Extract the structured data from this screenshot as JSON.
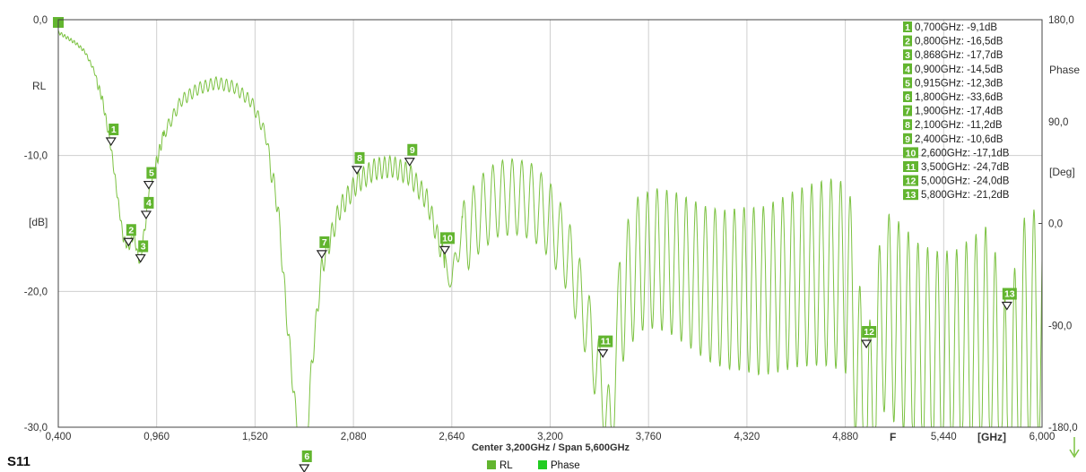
{
  "colors": {
    "trace": "#7cc242",
    "marker_fill": "#62b52f",
    "phase_legend": "#22cc22",
    "grid": "#cfcfcf",
    "axis": "#444444"
  },
  "title": "S11",
  "center_span": "Center 3,200GHz / Span 5,600GHz",
  "x_unit_label": "[GHz]",
  "f_label": "F",
  "rl_label": "RL",
  "left_unit_label": "[dB]",
  "right_unit_label": "[Deg]",
  "phase_label": "Phase",
  "legend": [
    {
      "label": "RL",
      "color": "#62b52f"
    },
    {
      "label": "Phase",
      "color": "#22cc22"
    }
  ],
  "chart_data": {
    "type": "line",
    "title": "S11",
    "xlabel": "[GHz]",
    "ylabel": "[dB]",
    "y2label": "[Deg]",
    "xlim": [
      0.4,
      6.0
    ],
    "ylim": [
      -30,
      0
    ],
    "y2lim": [
      -180,
      180
    ],
    "x_ticks": [
      "0,400",
      "0,960",
      "1,520",
      "2,080",
      "2,640",
      "3,200",
      "3,760",
      "4,320",
      "4,880",
      "5,440",
      "6,000"
    ],
    "x_tick_values": [
      0.4,
      0.96,
      1.52,
      2.08,
      2.64,
      3.2,
      3.76,
      4.32,
      4.88,
      5.44,
      6.0
    ],
    "y_ticks": [
      "0,0",
      "-10,0",
      "-20,0",
      "-30,0"
    ],
    "y_tick_values": [
      0,
      -10,
      -20,
      -30
    ],
    "y2_ticks": [
      "180,0",
      "90,0",
      "0,0",
      "-90,0",
      "-180,0"
    ],
    "y2_tick_values": [
      180,
      90,
      0,
      -90,
      -180
    ],
    "grid": true,
    "series": [
      {
        "name": "RL",
        "shape": [
          [
            0.4,
            -0.8
          ],
          [
            0.45,
            -1.2
          ],
          [
            0.5,
            -1.6
          ],
          [
            0.55,
            -2.2
          ],
          [
            0.6,
            -3.5
          ],
          [
            0.65,
            -5.5
          ],
          [
            0.7,
            -9.1
          ],
          [
            0.74,
            -13.0
          ],
          [
            0.77,
            -15.8
          ],
          [
            0.8,
            -16.5
          ],
          [
            0.83,
            -15.5
          ],
          [
            0.85,
            -16.9
          ],
          [
            0.868,
            -17.7
          ],
          [
            0.88,
            -16.0
          ],
          [
            0.9,
            -14.5
          ],
          [
            0.915,
            -12.3
          ],
          [
            0.95,
            -10.5
          ],
          [
            1.0,
            -8.0
          ],
          [
            1.1,
            -5.5
          ],
          [
            1.2,
            -4.6
          ],
          [
            1.3,
            -4.2
          ],
          [
            1.4,
            -4.5
          ],
          [
            1.5,
            -5.6
          ],
          [
            1.58,
            -8.0
          ],
          [
            1.65,
            -13.0
          ],
          [
            1.7,
            -21.0
          ],
          [
            1.75,
            -28.0
          ],
          [
            1.8,
            -33.6
          ],
          [
            1.84,
            -25.0
          ],
          [
            1.9,
            -17.4
          ],
          [
            2.0,
            -13.2
          ],
          [
            2.1,
            -11.2
          ],
          [
            2.2,
            -10.2
          ],
          [
            2.3,
            -10.0
          ],
          [
            2.4,
            -10.6
          ],
          [
            2.5,
            -12.5
          ],
          [
            2.6,
            -17.1
          ],
          [
            2.64,
            -18.5
          ],
          [
            2.7,
            -13.5
          ],
          [
            2.8,
            -11.5
          ],
          [
            2.9,
            -10.4
          ],
          [
            3.0,
            -10.2
          ],
          [
            3.1,
            -10.6
          ],
          [
            3.2,
            -12.0
          ],
          [
            3.3,
            -14.5
          ],
          [
            3.4,
            -19.0
          ],
          [
            3.5,
            -24.7
          ],
          [
            3.55,
            -28.0
          ],
          [
            3.6,
            -16.0
          ],
          [
            3.7,
            -13.0
          ],
          [
            3.8,
            -12.4
          ],
          [
            3.9,
            -12.6
          ],
          [
            4.0,
            -13.2
          ],
          [
            4.1,
            -13.8
          ],
          [
            4.2,
            -14.0
          ],
          [
            4.3,
            -13.8
          ],
          [
            4.4,
            -13.8
          ],
          [
            4.5,
            -13.2
          ],
          [
            4.6,
            -12.5
          ],
          [
            4.7,
            -12.0
          ],
          [
            4.8,
            -11.7
          ],
          [
            4.9,
            -12.0
          ],
          [
            5.0,
            -24.0
          ],
          [
            5.1,
            -14.0
          ],
          [
            5.2,
            -15.0
          ],
          [
            5.3,
            -16.5
          ],
          [
            5.4,
            -17.0
          ],
          [
            5.5,
            -17.0
          ],
          [
            5.6,
            -16.0
          ],
          [
            5.7,
            -15.0
          ],
          [
            5.8,
            -21.2
          ],
          [
            5.9,
            -14.5
          ],
          [
            6.0,
            -13.5
          ]
        ]
      }
    ],
    "markers": [
      {
        "n": "1",
        "freq": "0,700GHz",
        "value": "-9,1dB",
        "x": 0.7,
        "y": -9.1
      },
      {
        "n": "2",
        "freq": "0,800GHz",
        "value": "-16,5dB",
        "x": 0.8,
        "y": -16.5
      },
      {
        "n": "3",
        "freq": "0,868GHz",
        "value": "-17,7dB",
        "x": 0.868,
        "y": -17.7
      },
      {
        "n": "4",
        "freq": "0,900GHz",
        "value": "-14,5dB",
        "x": 0.9,
        "y": -14.5
      },
      {
        "n": "5",
        "freq": "0,915GHz",
        "value": "-12,3dB",
        "x": 0.915,
        "y": -12.3
      },
      {
        "n": "6",
        "freq": "1,800GHz",
        "value": "-33,6dB",
        "x": 1.8,
        "y": -33.6
      },
      {
        "n": "7",
        "freq": "1,900GHz",
        "value": "-17,4dB",
        "x": 1.9,
        "y": -17.4
      },
      {
        "n": "8",
        "freq": "2,100GHz",
        "value": "-11,2dB",
        "x": 2.1,
        "y": -11.2
      },
      {
        "n": "9",
        "freq": "2,400GHz",
        "value": "-10,6dB",
        "x": 2.4,
        "y": -10.6
      },
      {
        "n": "10",
        "freq": "2,600GHz",
        "value": "-17,1dB",
        "x": 2.6,
        "y": -17.1
      },
      {
        "n": "11",
        "freq": "3,500GHz",
        "value": "-24,7dB",
        "x": 3.5,
        "y": -24.7
      },
      {
        "n": "12",
        "freq": "5,000GHz",
        "value": "-24,0dB",
        "x": 5.0,
        "y": -24.0
      },
      {
        "n": "13",
        "freq": "5,800GHz",
        "value": "-21,2dB",
        "x": 5.8,
        "y": -21.2
      }
    ]
  }
}
